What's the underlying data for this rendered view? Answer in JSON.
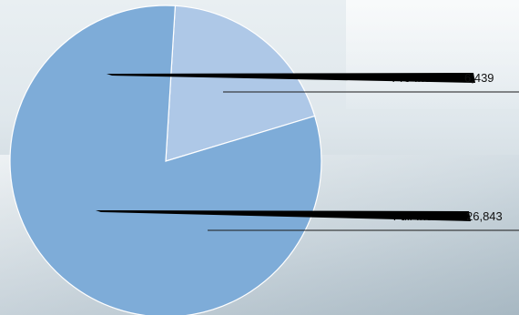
{
  "chart_data": {
    "type": "pie",
    "slices": [
      {
        "label": "Pre-Inc Sold",
        "value": 6439,
        "value_text": "6,439",
        "color": "#aec8e7"
      },
      {
        "label": "Full-Inc Sold",
        "value": 26843,
        "value_text": "26,843",
        "color": "#7eacd8"
      }
    ],
    "title": "",
    "legend": "none",
    "annotation_style": "black wedge callouts with underline"
  },
  "colors": {
    "slice_light": "#aec8e7",
    "slice_dark": "#7eacd8",
    "callout": "#000000"
  }
}
